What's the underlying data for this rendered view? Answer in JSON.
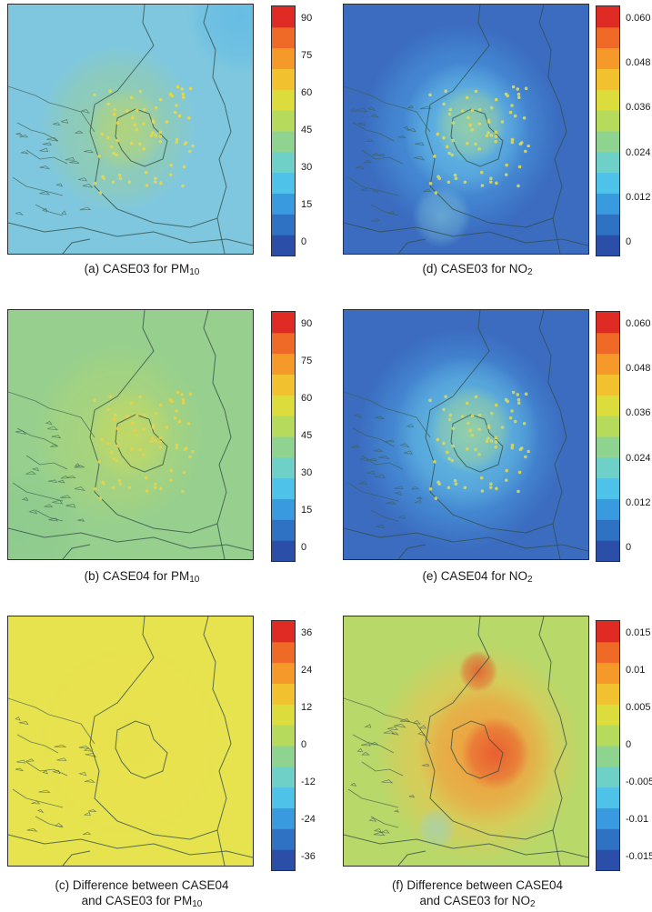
{
  "chart_data": [
    {
      "id": "a",
      "type": "heatmap",
      "caption_lines": [
        {
          "pre": "(a) CASE03 for PM",
          "sub": "10",
          "post": ""
        }
      ],
      "colorbar_ticks": [
        "90",
        "75",
        "60",
        "45",
        "30",
        "15",
        "0"
      ],
      "value_range": [
        0,
        90
      ],
      "background_color": "#7fc7de",
      "blobs": [
        {
          "cx": 0.45,
          "cy": 0.5,
          "r": 0.32,
          "color": "#a6d27a",
          "opacity": 0.55
        },
        {
          "cx": 0.48,
          "cy": 0.5,
          "r": 0.16,
          "color": "#c8d85a",
          "opacity": 0.55
        },
        {
          "cx": 0.95,
          "cy": 0.05,
          "r": 0.22,
          "color": "#5bb8e6",
          "opacity": 0.7
        }
      ],
      "dot_color": "#e9d64a"
    },
    {
      "id": "d",
      "type": "heatmap",
      "caption_lines": [
        {
          "pre": "(d) CASE03 for NO",
          "sub": "2",
          "post": ""
        }
      ],
      "colorbar_ticks": [
        "0.060",
        "0.048",
        "0.036",
        "0.024",
        "0.012",
        "0"
      ],
      "value_range": [
        0,
        0.06
      ],
      "background_color": "#3b6cc0",
      "blobs": [
        {
          "cx": 0.48,
          "cy": 0.5,
          "r": 0.4,
          "color": "#4ea6e6",
          "opacity": 0.75
        },
        {
          "cx": 0.5,
          "cy": 0.5,
          "r": 0.26,
          "color": "#6dc6e8",
          "opacity": 0.8
        },
        {
          "cx": 0.52,
          "cy": 0.48,
          "r": 0.15,
          "color": "#a8d68a",
          "opacity": 0.7
        },
        {
          "cx": 0.4,
          "cy": 0.85,
          "r": 0.12,
          "color": "#7fc4d8",
          "opacity": 0.6
        }
      ],
      "dot_color": "#d8d860"
    },
    {
      "id": "b",
      "type": "heatmap",
      "caption_lines": [
        {
          "pre": "(b) CASE04 for PM",
          "sub": "10",
          "post": ""
        }
      ],
      "colorbar_ticks": [
        "90",
        "75",
        "60",
        "45",
        "30",
        "15",
        "0"
      ],
      "value_range": [
        0,
        90
      ],
      "background_color": "#96cf8e",
      "blobs": [
        {
          "cx": 0.45,
          "cy": 0.5,
          "r": 0.35,
          "color": "#b9d86a",
          "opacity": 0.6
        },
        {
          "cx": 0.5,
          "cy": 0.5,
          "r": 0.18,
          "color": "#d2db57",
          "opacity": 0.55
        },
        {
          "cx": 0.05,
          "cy": 0.9,
          "r": 0.25,
          "color": "#86c78e",
          "opacity": 0.5
        }
      ],
      "dot_color": "#e8d14a"
    },
    {
      "id": "e",
      "type": "heatmap",
      "caption_lines": [
        {
          "pre": "(e) CASE04 for NO",
          "sub": "2",
          "post": ""
        }
      ],
      "colorbar_ticks": [
        "0.060",
        "0.048",
        "0.036",
        "0.024",
        "0.012",
        "0"
      ],
      "value_range": [
        0,
        0.06
      ],
      "background_color": "#3b6cc0",
      "blobs": [
        {
          "cx": 0.48,
          "cy": 0.52,
          "r": 0.42,
          "color": "#4fa9e6",
          "opacity": 0.75
        },
        {
          "cx": 0.5,
          "cy": 0.5,
          "r": 0.3,
          "color": "#6cc7e4",
          "opacity": 0.8
        },
        {
          "cx": 0.52,
          "cy": 0.48,
          "r": 0.17,
          "color": "#a9d78c",
          "opacity": 0.7
        }
      ],
      "dot_color": "#d6d663"
    },
    {
      "id": "c",
      "type": "heatmap",
      "caption_lines": [
        {
          "pre": "(c) Difference between CASE04",
          "sub": "",
          "post": ""
        },
        {
          "pre": "and CASE03 for PM",
          "sub": "10",
          "post": ""
        }
      ],
      "colorbar_ticks": [
        "36",
        "24",
        "12",
        "0",
        "-12",
        "-24",
        "-36"
      ],
      "value_range": [
        -36,
        36
      ],
      "background_color": "#e6e34f",
      "blobs": [
        {
          "cx": 0.5,
          "cy": 0.5,
          "r": 0.4,
          "color": "#eadf4c",
          "opacity": 0.5
        }
      ],
      "dot_color": ""
    },
    {
      "id": "f",
      "type": "heatmap",
      "caption_lines": [
        {
          "pre": "(f) Difference between CASE04",
          "sub": "",
          "post": ""
        },
        {
          "pre": "and CASE03 for NO",
          "sub": "2",
          "post": ""
        }
      ],
      "colorbar_ticks": [
        "0.015",
        "0.01",
        "0.005",
        "0",
        "-0.005",
        "-0.01",
        "-0.015"
      ],
      "value_range": [
        -0.015,
        0.015
      ],
      "background_color": "#b9d86a",
      "blobs": [
        {
          "cx": 0.55,
          "cy": 0.55,
          "r": 0.42,
          "color": "#f0c24a",
          "opacity": 0.85
        },
        {
          "cx": 0.58,
          "cy": 0.55,
          "r": 0.28,
          "color": "#f0943a",
          "opacity": 0.85
        },
        {
          "cx": 0.62,
          "cy": 0.55,
          "r": 0.14,
          "color": "#e8542c",
          "opacity": 0.85
        },
        {
          "cx": 0.55,
          "cy": 0.22,
          "r": 0.08,
          "color": "#e6522a",
          "opacity": 0.8
        },
        {
          "cx": 0.38,
          "cy": 0.85,
          "r": 0.08,
          "color": "#9fd1c0",
          "opacity": 0.7
        }
      ],
      "dot_color": ""
    }
  ],
  "colorbar_colors": [
    "#2b4ea8",
    "#2f72c4",
    "#3a9adf",
    "#4fc2ea",
    "#6fd0c8",
    "#8fd391",
    "#b5da5c",
    "#dcdc3c",
    "#f2c12f",
    "#f59a2a",
    "#ef6a27",
    "#e02a24"
  ]
}
